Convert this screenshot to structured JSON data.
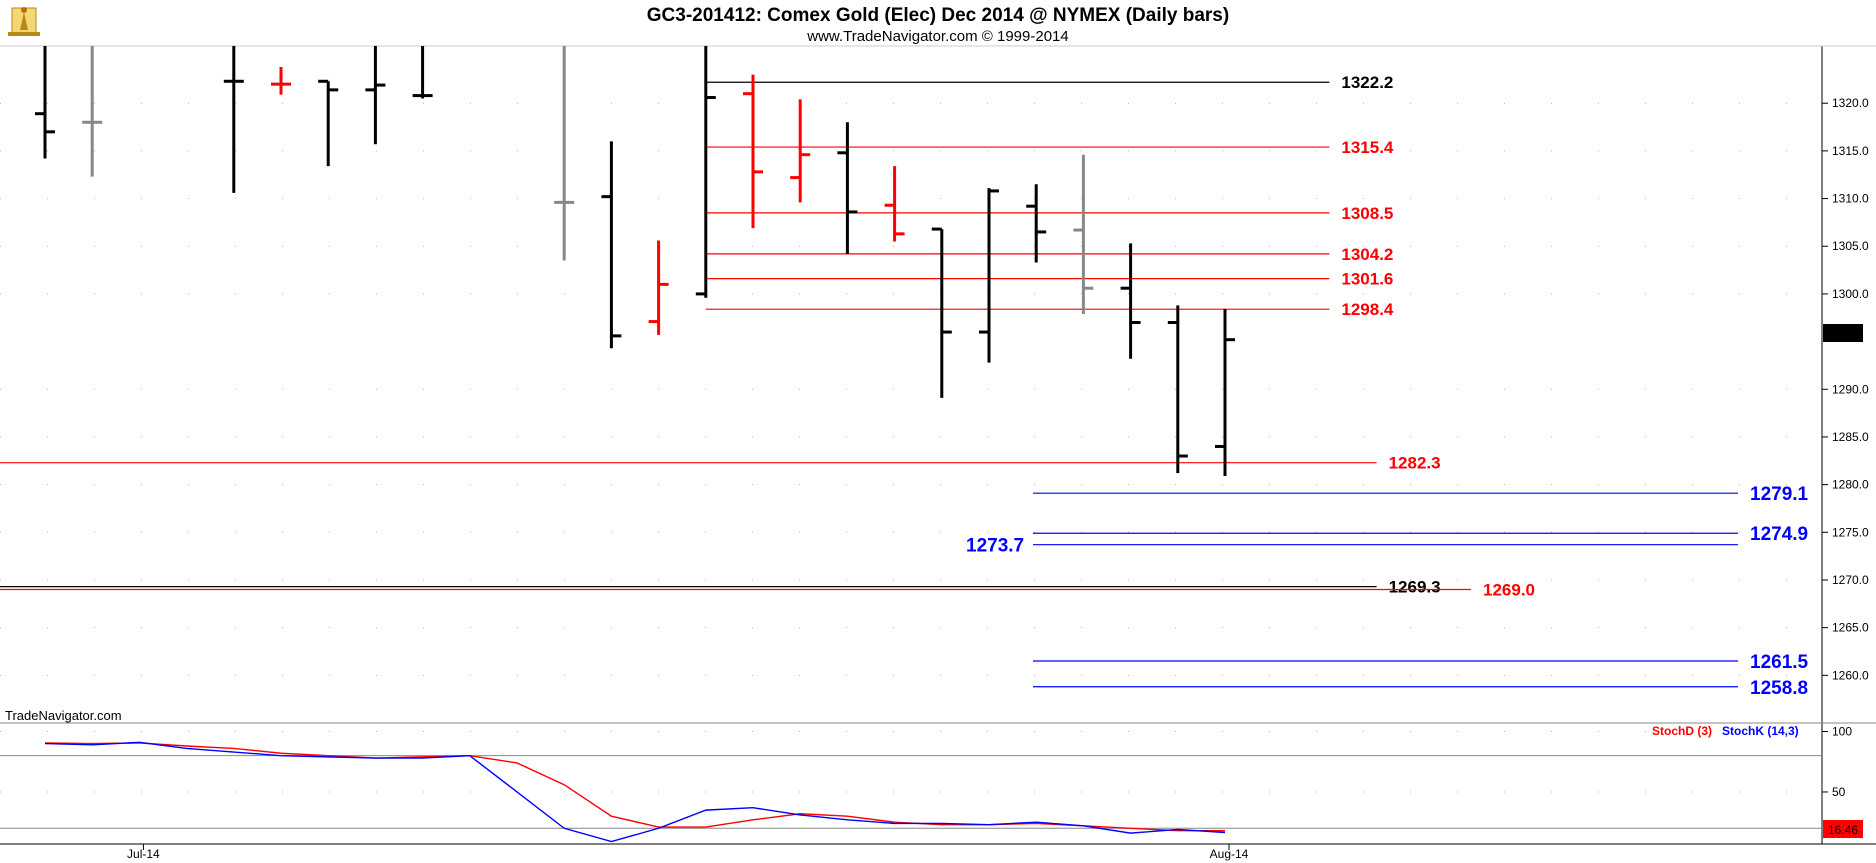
{
  "title": "GC3-201412:  Comex Gold (Elec) Dec 2014 @ NYMEX  (Daily bars)",
  "subtitle": "www.TradeNavigator.com © 1999-2014",
  "watermark": "TradeNavigator.com",
  "logo_icon": "lighthouse-logo-icon",
  "colors": {
    "up": "#ff0000",
    "down": "#000000",
    "neutral": "#888888",
    "blue": "#0000ff",
    "grid": "#b0b0b0"
  },
  "chart_data": [
    {
      "type": "ohlc",
      "series_name": "GC3-201412 Daily bars",
      "ylim": [
        1255,
        1326
      ],
      "y_ticks": [
        1320.0,
        1315.0,
        1310.0,
        1305.0,
        1300.0,
        1290.0,
        1285.0,
        1280.0,
        1275.0,
        1270.0,
        1265.0,
        1260.0
      ],
      "x_labels": [
        {
          "label": "Jul-14",
          "index": 2
        },
        {
          "label": "Aug-14",
          "index": 25
        }
      ],
      "last_price": "1295.2",
      "bars": [
        {
          "i": 0,
          "o": 1318.9,
          "h": 1326,
          "l": 1314.2,
          "c": 1317.0,
          "col": "down"
        },
        {
          "i": 1,
          "o": 1318.0,
          "h": 1326,
          "l": 1312.3,
          "c": 1318.0,
          "col": "neutral"
        },
        {
          "i": 4,
          "o": 1322.3,
          "h": 1326,
          "l": 1310.6,
          "c": 1322.3,
          "col": "down"
        },
        {
          "i": 5,
          "o": 1322.0,
          "h": 1323.8,
          "l": 1320.9,
          "c": 1322.0,
          "col": "up"
        },
        {
          "i": 6,
          "o": 1322.3,
          "h": 1322.3,
          "l": 1313.4,
          "c": 1321.4,
          "col": "down"
        },
        {
          "i": 7,
          "o": 1321.4,
          "h": 1326,
          "l": 1315.7,
          "c": 1321.9,
          "col": "down"
        },
        {
          "i": 8,
          "o": 1320.8,
          "h": 1326,
          "l": 1320.5,
          "c": 1320.8,
          "col": "down"
        },
        {
          "i": 11,
          "o": 1309.6,
          "h": 1326,
          "l": 1303.5,
          "c": 1309.6,
          "col": "neutral"
        },
        {
          "i": 12,
          "o": 1310.2,
          "h": 1316.0,
          "l": 1294.3,
          "c": 1295.6,
          "col": "down"
        },
        {
          "i": 13,
          "o": 1297.1,
          "h": 1305.6,
          "l": 1295.7,
          "c": 1301.0,
          "col": "up"
        },
        {
          "i": 14,
          "o": 1300.0,
          "h": 1326,
          "l": 1299.6,
          "c": 1320.6,
          "col": "down"
        },
        {
          "i": 15,
          "o": 1321.0,
          "h": 1323.0,
          "l": 1306.9,
          "c": 1312.8,
          "col": "up"
        },
        {
          "i": 16,
          "o": 1312.2,
          "h": 1320.4,
          "l": 1309.6,
          "c": 1314.6,
          "col": "up"
        },
        {
          "i": 17,
          "o": 1314.8,
          "h": 1318.0,
          "l": 1304.2,
          "c": 1308.6,
          "col": "down"
        },
        {
          "i": 18,
          "o": 1309.3,
          "h": 1313.4,
          "l": 1305.5,
          "c": 1306.3,
          "col": "up"
        },
        {
          "i": 19,
          "o": 1306.8,
          "h": 1306.8,
          "l": 1289.1,
          "c": 1296.0,
          "col": "down"
        },
        {
          "i": 20,
          "o": 1296.0,
          "h": 1311.1,
          "l": 1292.8,
          "c": 1310.8,
          "col": "down"
        },
        {
          "i": 21,
          "o": 1309.2,
          "h": 1311.5,
          "l": 1303.3,
          "c": 1306.5,
          "col": "down"
        },
        {
          "i": 22,
          "o": 1306.7,
          "h": 1314.6,
          "l": 1297.9,
          "c": 1300.6,
          "col": "neutral"
        },
        {
          "i": 23,
          "o": 1300.6,
          "h": 1305.3,
          "l": 1293.2,
          "c": 1297.0,
          "col": "down"
        },
        {
          "i": 24,
          "o": 1297.0,
          "h": 1298.8,
          "l": 1281.2,
          "c": 1283.0,
          "col": "down"
        },
        {
          "i": 25,
          "o": 1284.0,
          "h": 1298.4,
          "l": 1280.9,
          "c": 1295.2,
          "col": "down"
        }
      ],
      "levels": [
        {
          "value": 1322.2,
          "label": "1322.2",
          "color": "#000000",
          "from": 14,
          "to": 27
        },
        {
          "value": 1315.4,
          "label": "1315.4",
          "color": "#ff0000",
          "from": 14,
          "to": 27
        },
        {
          "value": 1308.5,
          "label": "1308.5",
          "color": "#ff0000",
          "from": 14,
          "to": 27
        },
        {
          "value": 1304.2,
          "label": "1304.2",
          "color": "#ff0000",
          "from": 14,
          "to": 27
        },
        {
          "value": 1301.6,
          "label": "1301.6",
          "color": "#ff0000",
          "from": 14,
          "to": 27
        },
        {
          "value": 1298.4,
          "label": "1298.4",
          "color": "#ff0000",
          "from": 14,
          "to": 27
        },
        {
          "value": 1282.3,
          "label": "1282.3",
          "color": "#ff0000",
          "from": -1,
          "to": 28
        },
        {
          "value": 1269.3,
          "label": "1269.3",
          "color": "#000000",
          "from": -1,
          "to": 28
        },
        {
          "value": 1269.0,
          "label": "1269.0",
          "color": "#ff0000",
          "from": -1,
          "to": 30
        }
      ],
      "blue_levels": [
        {
          "value": 1279.1,
          "label": "1279.1",
          "side": "right"
        },
        {
          "value": 1274.9,
          "label": "1274.9",
          "side": "right"
        },
        {
          "value": 1273.7,
          "label": "1273.7",
          "side": "left"
        },
        {
          "value": 1261.5,
          "label": "1261.5",
          "side": "right"
        },
        {
          "value": 1258.8,
          "label": "1258.8",
          "side": "right"
        }
      ]
    },
    {
      "type": "line",
      "title": "Stochastic",
      "ylim": [
        7,
        107
      ],
      "y_ticks": [
        100,
        50
      ],
      "ref_lines": [
        80,
        20
      ],
      "last_value": "16.46",
      "legend": [
        {
          "name": "StochD (3)",
          "color": "#ff0000"
        },
        {
          "name": "StochK (14,3)",
          "color": "#0000ff"
        }
      ],
      "x": [
        0,
        1,
        2,
        3,
        4,
        5,
        6,
        7,
        8,
        9,
        10,
        11,
        12,
        13,
        14,
        15,
        16,
        17,
        18,
        19,
        20,
        21,
        22,
        23,
        24,
        25
      ],
      "series": [
        {
          "name": "StochD (3)",
          "color": "#ff0000",
          "values": [
            90.5,
            90,
            90.5,
            88,
            86,
            82,
            80,
            78,
            79,
            80,
            74,
            56,
            30,
            21,
            21,
            27,
            32,
            30,
            25,
            23,
            23,
            24,
            22,
            20,
            18,
            18
          ]
        },
        {
          "name": "StochK (14,3)",
          "color": "#0000ff",
          "values": [
            90,
            89,
            91,
            86,
            83,
            80,
            79,
            78,
            78,
            80,
            50,
            20,
            9,
            20,
            35,
            37,
            31,
            27,
            24,
            24,
            23,
            25,
            22,
            16,
            19,
            16.5
          ]
        }
      ]
    }
  ]
}
